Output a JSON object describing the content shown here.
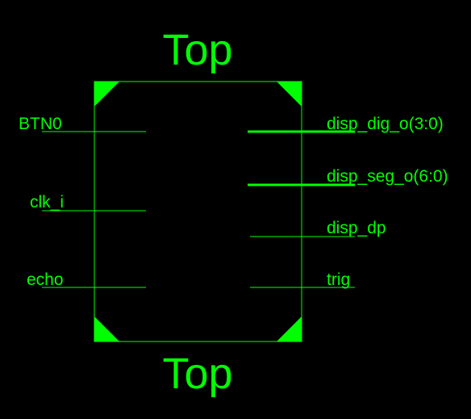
{
  "block": {
    "title_top": "Top",
    "title_bottom": "Top",
    "color": "#00ff00"
  },
  "ports": {
    "inputs": [
      {
        "label": "BTN0",
        "bus": false
      },
      {
        "label": "clk_i",
        "bus": false
      },
      {
        "label": "echo",
        "bus": false
      }
    ],
    "outputs": [
      {
        "label": "disp_dig_o(3:0)",
        "bus": true
      },
      {
        "label": "disp_seg_o(6:0)",
        "bus": true
      },
      {
        "label": "disp_dp",
        "bus": false
      },
      {
        "label": "trig",
        "bus": false
      }
    ]
  }
}
